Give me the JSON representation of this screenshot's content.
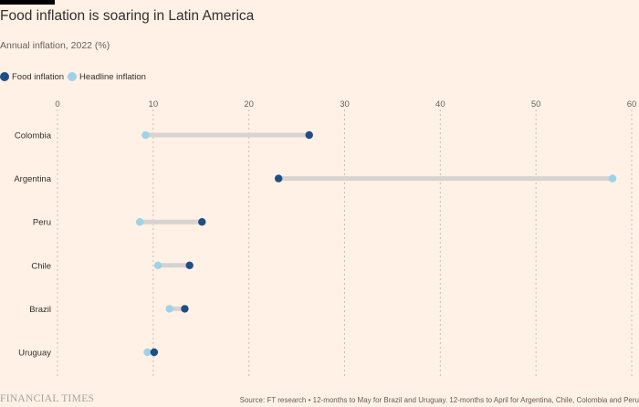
{
  "header": {
    "title": "Food inflation is soaring in Latin America",
    "subtitle": "Annual inflation, 2022 (%)"
  },
  "colors": {
    "background": "#fff1e5",
    "food": "#1f4e85",
    "headline": "#9dd3e8",
    "connector": "#d6d3d1",
    "gridline": "#c8bfb6"
  },
  "chart_data": {
    "type": "dot-range",
    "title": "Food inflation is soaring in Latin America",
    "subtitle": "Annual inflation, 2022 (%)",
    "xlim": [
      0,
      60
    ],
    "xticks": [
      0,
      10,
      20,
      30,
      40,
      50,
      60
    ],
    "grid": true,
    "legend_position": "top-left",
    "categories": [
      "Colombia",
      "Argentina",
      "Peru",
      "Chile",
      "Brazil",
      "Uruguay"
    ],
    "series": [
      {
        "name": "Food inflation",
        "color": "#1f4e85",
        "values": [
          26.3,
          23.1,
          15.1,
          13.8,
          13.3,
          10.1
        ]
      },
      {
        "name": "Headline inflation",
        "color": "#9dd3e8",
        "values": [
          9.2,
          58.0,
          8.6,
          10.5,
          11.7,
          9.4
        ]
      }
    ]
  },
  "footer": {
    "brand": "FINANCIAL TIMES",
    "source": "Source: FT research • 12-months to May for Brazil and Uruguay. 12-months to April for Argentina, Chile, Colombia and Peru"
  }
}
